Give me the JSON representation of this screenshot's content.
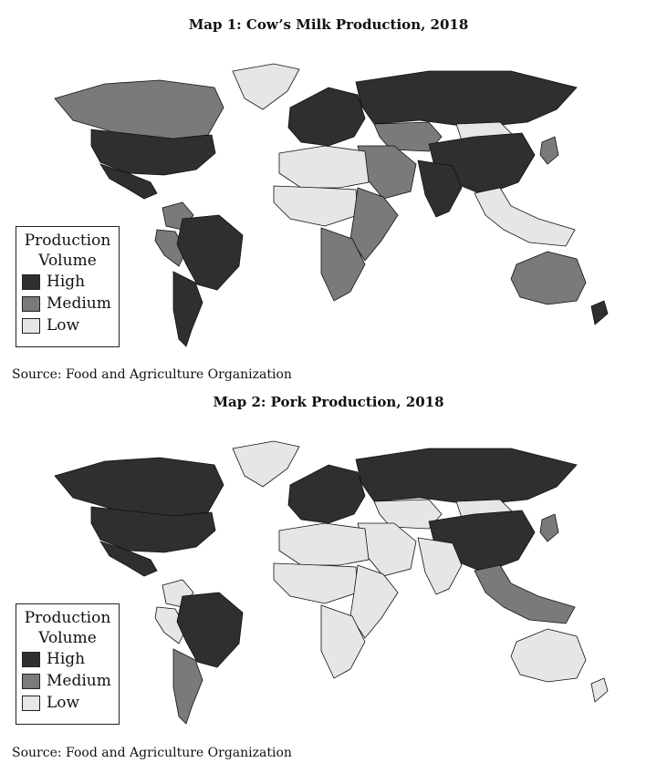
{
  "colors": {
    "high": "#2f2f2f",
    "medium": "#7a7a7a",
    "low": "#e6e6e6",
    "border": "#111111"
  },
  "maps": [
    {
      "title": "Map 1: Cow’s Milk Production, 2018",
      "legend": {
        "title_line1": "Production",
        "title_line2": "Volume",
        "items": [
          "High",
          "Medium",
          "Low"
        ]
      },
      "source": "Source: Food and Agriculture Organization",
      "regions": {
        "united_states": "high",
        "canada": "medium",
        "mexico": "high",
        "greenland": "low",
        "brazil": "high",
        "argentina": "high",
        "colombia": "medium",
        "peru": "medium",
        "russia": "high",
        "europe": "high",
        "china": "high",
        "india": "high",
        "mongolia": "low",
        "kazakhstan": "medium",
        "middle_east": "medium",
        "north_africa": "low",
        "sahel": "low",
        "east_africa": "medium",
        "south_africa": "medium",
        "australia": "medium",
        "new_zealand": "high",
        "southeast_asia": "low",
        "japan": "medium"
      }
    },
    {
      "title": "Map 2: Pork Production, 2018",
      "legend": {
        "title_line1": "Production",
        "title_line2": "Volume",
        "items": [
          "High",
          "Medium",
          "Low"
        ]
      },
      "source": "Source: Food and Agriculture Organization",
      "regions": {
        "united_states": "high",
        "canada": "high",
        "mexico": "high",
        "greenland": "low",
        "brazil": "high",
        "argentina": "medium",
        "colombia": "low",
        "peru": "low",
        "russia": "high",
        "europe": "high",
        "china": "high",
        "india": "low",
        "mongolia": "low",
        "kazakhstan": "low",
        "middle_east": "low",
        "north_africa": "low",
        "sahel": "low",
        "east_africa": "low",
        "south_africa": "low",
        "australia": "low",
        "new_zealand": "low",
        "southeast_asia": "medium",
        "japan": "medium"
      }
    }
  ]
}
